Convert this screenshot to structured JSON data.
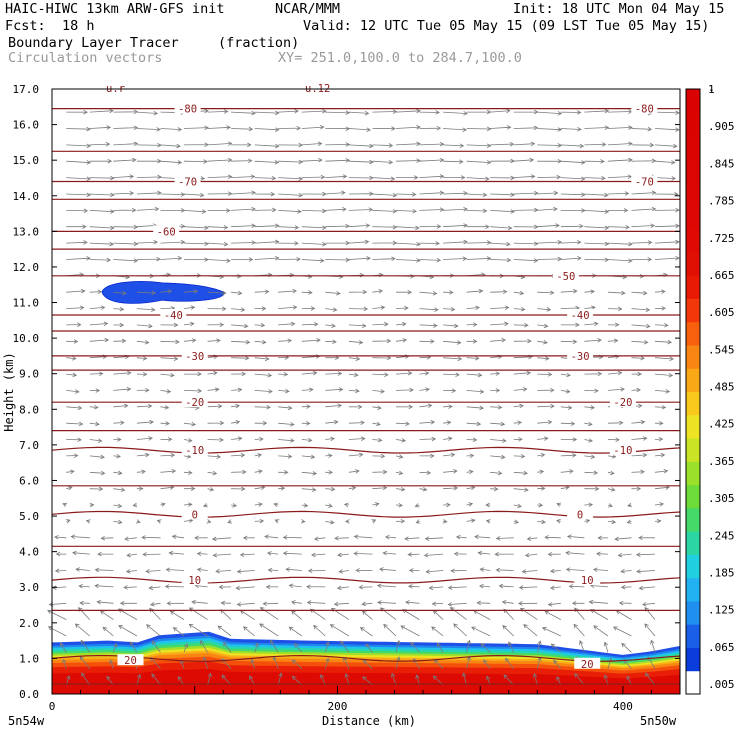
{
  "header": {
    "model": "HAIC-HIWC 13km ARW-GFS init",
    "org": "NCAR/MMM",
    "init": "Init: 18 UTC Mon 04 May 15",
    "fcst_label": "Fcst:",
    "fcst_value": "18 h",
    "valid": "Valid: 12 UTC Tue 05 May 15 (09 LST Tue 05 May 15)",
    "field_name": "Boundary Layer Tracer",
    "field_units": "(fraction)",
    "overlay": "Circulation vectors",
    "xy": "XY= 251.0,100.0 to 284.7,100.0"
  },
  "chart_data": {
    "type": "cross-section",
    "xlabel": "Distance (km)",
    "ylabel": "Height (km)",
    "xlim": [
      0,
      440
    ],
    "ylim": [
      0,
      17
    ],
    "x_ticks": [
      0,
      200,
      400
    ],
    "y_ticks": [
      0.0,
      1.0,
      2.0,
      3.0,
      4.0,
      5.0,
      6.0,
      7.0,
      8.0,
      9.0,
      10.0,
      11.0,
      12.0,
      13.0,
      14.0,
      15.0,
      16.0,
      17.0
    ],
    "left_endpoint": "5n54w",
    "right_endpoint": "5n50w",
    "top_fragment_labels": [
      "u.r",
      "u.12"
    ],
    "temperature_contours": [
      {
        "value": -80,
        "height": 16.45
      },
      {
        "value": -70,
        "height": 14.4
      },
      {
        "value": -60,
        "height": 13.0
      },
      {
        "value": -50,
        "height": 11.75
      },
      {
        "value": -40,
        "height": 10.65
      },
      {
        "value": -30,
        "height": 9.5
      },
      {
        "value": -20,
        "height": 8.2
      },
      {
        "value": -10,
        "height": 6.85
      },
      {
        "value": 0,
        "height": 5.05
      },
      {
        "value": 10,
        "height": 3.2
      },
      {
        "value": 20,
        "height": 1.0
      }
    ],
    "extra_isotherm_heights": [
      15.25,
      13.9,
      12.5,
      10.2,
      9.1,
      7.4,
      5.85,
      4.15,
      2.35,
      0.28
    ],
    "contour_label_positions": {
      "-80": [
        [
          95,
          16.45
        ],
        [
          415,
          16.45
        ]
      ],
      "-70": [
        [
          95,
          14.4
        ],
        [
          415,
          14.4
        ]
      ],
      "-60": [
        [
          80,
          13.0
        ]
      ],
      "-50": [
        [
          360,
          11.75
        ]
      ],
      "-40": [
        [
          85,
          10.65
        ],
        [
          370,
          10.65
        ]
      ],
      "-30": [
        [
          100,
          9.5
        ],
        [
          370,
          9.5
        ]
      ],
      "-20": [
        [
          100,
          8.2
        ],
        [
          400,
          8.2
        ]
      ],
      "-10": [
        [
          100,
          6.85
        ],
        [
          400,
          6.85
        ]
      ],
      "0": [
        [
          100,
          5.05
        ],
        [
          370,
          5.05
        ]
      ],
      "10": [
        [
          100,
          3.2
        ],
        [
          375,
          3.2
        ]
      ],
      "20": [
        [
          55,
          0.95
        ],
        [
          375,
          0.85
        ]
      ]
    },
    "tracer_layer": {
      "top_km": [
        [
          0,
          1.45
        ],
        [
          40,
          1.5
        ],
        [
          60,
          1.45
        ],
        [
          75,
          1.65
        ],
        [
          110,
          1.75
        ],
        [
          125,
          1.55
        ],
        [
          180,
          1.5
        ],
        [
          260,
          1.45
        ],
        [
          340,
          1.4
        ],
        [
          400,
          1.1
        ],
        [
          420,
          1.2
        ],
        [
          440,
          1.35
        ]
      ],
      "blob": {
        "x": [
          35,
          120
        ],
        "y": [
          10.9,
          11.55
        ],
        "value": 0.05
      }
    },
    "colorbar": {
      "labels": [
        ".005",
        ".065",
        ".125",
        ".185",
        ".245",
        ".305",
        ".365",
        ".425",
        ".485",
        ".545",
        ".605",
        ".665",
        ".725",
        ".785",
        ".845",
        ".905",
        "1"
      ],
      "colors": [
        "#ffffff",
        "#0a3ddb",
        "#1a5fe8",
        "#1f8ff0",
        "#22b2f2",
        "#20d0e0",
        "#2cd6a4",
        "#45d96a",
        "#6edc38",
        "#9be02b",
        "#c8e425",
        "#eee323",
        "#f8c81c",
        "#f9a816",
        "#f98612",
        "#f8600e",
        "#f2380a",
        "#e81a06",
        "#e01004",
        "#de0a03",
        "#dd0803",
        "#dc0602",
        "#db0502",
        "#db0402",
        "#da0302",
        "#da0202"
      ],
      "top_marker": "-"
    }
  }
}
